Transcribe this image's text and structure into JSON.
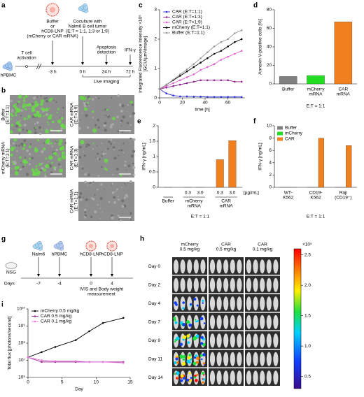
{
  "timeline_a": {
    "panel": "a",
    "cell": "hPBMC",
    "activation": [
      "T cell",
      "activation"
    ],
    "treatment": [
      "Buffer",
      "or",
      "hCD8-LNP",
      "(mCherry or CAR mRNA)"
    ],
    "coculture": [
      "Coculture with",
      "Nalm6 B cell tumor",
      "(E:T = 1:1, 1:3 or 1:9)"
    ],
    "apoptosis": [
      "Apoptosis",
      "detection"
    ],
    "ifn": "IFN-γ",
    "times": [
      "-3 h",
      "0 h",
      "24 h",
      "72 h"
    ],
    "live": "Live imaging"
  },
  "micrographs_b": {
    "panel": "b",
    "left": [
      [
        "Buffer",
        "(E:T=1:1)"
      ],
      [
        "mCherry mRNA",
        "(E:T=1:1)"
      ]
    ],
    "right": [
      [
        "CAR mRNA",
        "(E:T=1:9)"
      ],
      [
        "CAR mRNA",
        "(E:T=1:3)"
      ],
      [
        "CAR mRNA",
        "(E:T=1:1)"
      ]
    ]
  },
  "timeline_g": {
    "panel": "g",
    "mouse": "NSG",
    "days_label": "Days",
    "events": [
      {
        "name": "Nalm6",
        "day": "-7"
      },
      {
        "name": "hPBMC",
        "day": "-4"
      },
      {
        "name": "hCD8-LNP",
        "day": "0"
      },
      {
        "name": "hCD8-LNP",
        "day": "4"
      }
    ],
    "measurement": [
      "IVIS and Body weight",
      "measurement"
    ]
  },
  "imaging_h": {
    "panel": "h",
    "columns": [
      [
        "mCherry",
        "0.5 mg/kg"
      ],
      [
        "CAR",
        "0.5 mg/kg"
      ],
      [
        "CAR",
        "0.1 mg/kg"
      ]
    ],
    "rows": [
      "Day 0",
      "Day 2",
      "Day 4",
      "Day 7",
      "Day 9",
      "Day 11",
      "Day 14"
    ],
    "colorbar": {
      "multiplier": "×10⁵",
      "lim": [
        0.3,
        2.6
      ],
      "ticks": [
        0.5,
        {
          "value": 1,
          "label": "1.0"
        },
        1.5,
        {
          "value": 2,
          "label": "2.0"
        },
        2.5
      ]
    }
  },
  "chart_data": [
    {
      "type": "line",
      "panel": "c",
      "ylabel": [
        "Integrated Fluorescence Intensity ×10⁵",
        "[GCU/µm²/image]"
      ],
      "xlabel": "time [h]",
      "x": [
        0,
        6,
        12,
        18,
        24,
        30,
        36,
        42,
        48,
        54,
        60,
        66,
        72
      ],
      "xlim": [
        0,
        75
      ],
      "xticks": [
        0,
        20,
        40,
        60
      ],
      "ylim": [
        0,
        3
      ],
      "yticks": [
        0,
        1,
        2,
        3
      ],
      "legend": "top-left",
      "log": false,
      "series": [
        {
          "name": "CAR (E:T=1:1)",
          "color": "#2b2bd6",
          "values": [
            0.3,
            0.15,
            0.08,
            0.05,
            0.05,
            0.04,
            0.04,
            0.03,
            0.03,
            0.03,
            0.03,
            0.03,
            0.03
          ]
        },
        {
          "name": "CAR (E:T=1:3)",
          "color": "#8b1a8b",
          "values": [
            0.3,
            0.35,
            0.4,
            0.45,
            0.5,
            0.55,
            0.6,
            0.6,
            0.6,
            0.6,
            0.6,
            0.55,
            0.55
          ]
        },
        {
          "name": "CAR (E:T=1:9)",
          "color": "#e060d0",
          "values": [
            0.3,
            0.4,
            0.5,
            0.6,
            0.7,
            0.8,
            0.95,
            1.05,
            1.15,
            1.3,
            1.4,
            1.5,
            1.6
          ]
        },
        {
          "name": "mCherry (E:T=1:1)",
          "color": "#000000",
          "values": [
            0.3,
            0.45,
            0.6,
            0.75,
            0.9,
            1.05,
            1.2,
            1.35,
            1.5,
            1.6,
            1.75,
            1.9,
            2.0
          ]
        },
        {
          "name": "Buffer (E:T=1:1)",
          "color": "#999999",
          "values": [
            0.3,
            0.45,
            0.62,
            0.8,
            0.97,
            1.15,
            1.35,
            1.55,
            1.75,
            1.9,
            2.0,
            2.2,
            2.3
          ]
        }
      ]
    },
    {
      "type": "bar",
      "panel": "d",
      "ylabel": "Annexin V-positive cells [%]",
      "xlabel": "E:T = 1:1",
      "categories": [
        [
          "Buffer"
        ],
        [
          "mCherry",
          "mRNA"
        ],
        [
          "CAR",
          "mRNA"
        ]
      ],
      "values": [
        8,
        9,
        67
      ],
      "colors": [
        "#808080",
        "#22dd22",
        "#f07f1e"
      ],
      "ylim": [
        0,
        80
      ],
      "yticks": [
        0,
        20,
        40,
        60,
        80
      ]
    },
    {
      "type": "bar",
      "panel": "e",
      "ylabel": "IFN-γ [ng/mL]",
      "xlabel": "E:T = 1:1",
      "unit": "[µg/mL]",
      "groups": [
        {
          "name": [
            "Buffer"
          ],
          "doses": [
            null
          ],
          "values": [
            0
          ],
          "color": "#808080"
        },
        {
          "name": [
            "mCherry",
            "mRNA"
          ],
          "doses": [
            "0.3",
            "3.0"
          ],
          "values": [
            0,
            0
          ],
          "color": "#22dd22"
        },
        {
          "name": [
            "CAR",
            "mRNA"
          ],
          "doses": [
            "0.3",
            "3.0"
          ],
          "values": [
            0.9,
            1.52
          ],
          "color": "#f07f1e"
        }
      ],
      "ylim": [
        0,
        2
      ],
      "yticks": [
        0,
        0.5,
        1,
        1.5,
        2
      ]
    },
    {
      "type": "bar",
      "panel": "f",
      "ylabel": "IFN-γ [ng/mL]",
      "xlabel": "E:T = 1:1",
      "legend": "top-left",
      "categories": [
        [
          "WT-",
          "K562"
        ],
        [
          "CD19-",
          "K562"
        ],
        [
          "Raji",
          "(CD19⁺)"
        ]
      ],
      "series": [
        {
          "name": "Buffer",
          "color": "#808080",
          "values": [
            0,
            0,
            0
          ]
        },
        {
          "name": "mCherry",
          "color": "#22dd22",
          "values": [
            0,
            0,
            0
          ]
        },
        {
          "name": "CAR",
          "color": "#f07f1e",
          "values": [
            0,
            8.0,
            6.8
          ]
        }
      ],
      "ylim": [
        0,
        10
      ],
      "yticks": [
        0,
        2,
        4,
        6,
        8,
        10
      ]
    },
    {
      "type": "line",
      "panel": "i",
      "ylabel": [
        "Total flux [photons/second]"
      ],
      "xlabel": "Day",
      "x": [
        0,
        2,
        4,
        7,
        9,
        11,
        14
      ],
      "xlim": [
        0,
        15
      ],
      "xticks": [
        0,
        5,
        10,
        15
      ],
      "log": true,
      "ylim": [
        1000000,
        10000000000
      ],
      "legend": "top-left",
      "yticks": [
        {
          "value": 1000000,
          "label": "10⁶"
        },
        {
          "value": 10000000,
          "label": "10⁷"
        },
        {
          "value": 100000000,
          "label": "10⁸"
        },
        {
          "value": 1000000000,
          "label": "10⁹"
        },
        {
          "value": 10000000000,
          "label": "10¹⁰"
        }
      ],
      "series": [
        {
          "name": "mCherry 0.5 mg/kg",
          "color": "#000000",
          "values": [
            15000000,
            30000000,
            60000000,
            150000000,
            500000000,
            1500000000,
            3000000000
          ]
        },
        {
          "name": "CAR 0.5 mg/kg",
          "color": "#9b2b9b",
          "values": [
            15000000,
            8000000,
            8000000,
            8000000,
            8000000,
            8000000,
            8000000
          ]
        },
        {
          "name": "CAR 0.1 mg/kg",
          "color": "#e87ad8",
          "values": [
            15000000,
            10000000,
            9000000,
            9000000,
            8000000,
            8000000,
            7000000
          ]
        }
      ]
    }
  ]
}
